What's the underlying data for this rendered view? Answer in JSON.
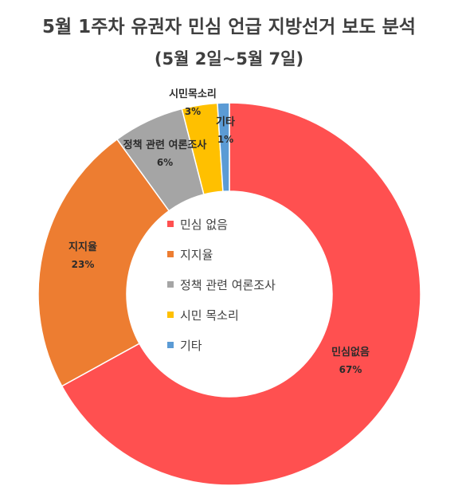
{
  "title": "5월 1주차 유권자 민심 언급 지방선거 보도 분석",
  "subtitle": "(5월 2일~5월 7일)",
  "chart_data": {
    "type": "pie",
    "donut": true,
    "legend_position": "center",
    "categories": [
      "민심 없음",
      "지지율",
      "정책 관련 여론조사",
      "시민 목소리",
      "기타"
    ],
    "slice_labels": [
      "민심없음",
      "지지율",
      "정책 관련 여론조사",
      "시민목소리",
      "기타"
    ],
    "values": [
      67,
      23,
      6,
      3,
      1
    ],
    "value_labels": [
      "67%",
      "23%",
      "6%",
      "3%",
      "1%"
    ],
    "colors": [
      "#ff5050",
      "#ed7d31",
      "#a5a5a5",
      "#ffc000",
      "#5b9bd5"
    ]
  }
}
